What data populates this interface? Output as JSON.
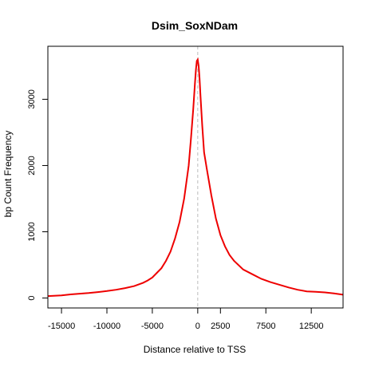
{
  "chart_data": {
    "type": "line",
    "title": "Dsim_SoxNDam",
    "xlabel": "Distance relative to TSS",
    "ylabel": "bp Count Frequency",
    "xlim": [
      -16500,
      16000
    ],
    "ylim": [
      -150,
      3800
    ],
    "x_ticks": [
      {
        "value": -15000,
        "label": "-15000"
      },
      {
        "value": -10000,
        "label": "-10000"
      },
      {
        "value": -5000,
        "label": "-5000"
      },
      {
        "value": 0,
        "label": "0"
      },
      {
        "value": 2500,
        "label": "2500"
      },
      {
        "value": 7500,
        "label": "7500"
      },
      {
        "value": 12500,
        "label": "12500"
      }
    ],
    "y_ticks": [
      {
        "value": 0,
        "label": "0"
      },
      {
        "value": 1000,
        "label": "1000"
      },
      {
        "value": 2000,
        "label": "2000"
      },
      {
        "value": 3000,
        "label": "3000"
      }
    ],
    "reference_line": {
      "x": 0,
      "color": "#bbbbbb"
    },
    "grid": false,
    "series": [
      {
        "color": "#ee0000",
        "x": [
          -16500,
          -15000,
          -14000,
          -13000,
          -12000,
          -11000,
          -10000,
          -9000,
          -8000,
          -7000,
          -6000,
          -5500,
          -5000,
          -4500,
          -4000,
          -3500,
          -3000,
          -2500,
          -2000,
          -1500,
          -1000,
          -750,
          -500,
          -300,
          -200,
          -100,
          0,
          100,
          200,
          300,
          500,
          700,
          1000,
          1500,
          2000,
          2500,
          3000,
          3500,
          4000,
          5000,
          6000,
          7000,
          8000,
          9000,
          10000,
          11000,
          12000,
          13000,
          14000,
          15000,
          16000
        ],
        "y": [
          30,
          40,
          55,
          65,
          75,
          90,
          105,
          125,
          150,
          180,
          230,
          265,
          310,
          380,
          450,
          560,
          700,
          900,
          1150,
          1500,
          2000,
          2400,
          2850,
          3250,
          3450,
          3580,
          3600,
          3500,
          3320,
          3050,
          2600,
          2200,
          1950,
          1550,
          1200,
          950,
          780,
          650,
          560,
          430,
          360,
          290,
          240,
          200,
          160,
          125,
          100,
          95,
          85,
          70,
          50
        ]
      }
    ]
  }
}
